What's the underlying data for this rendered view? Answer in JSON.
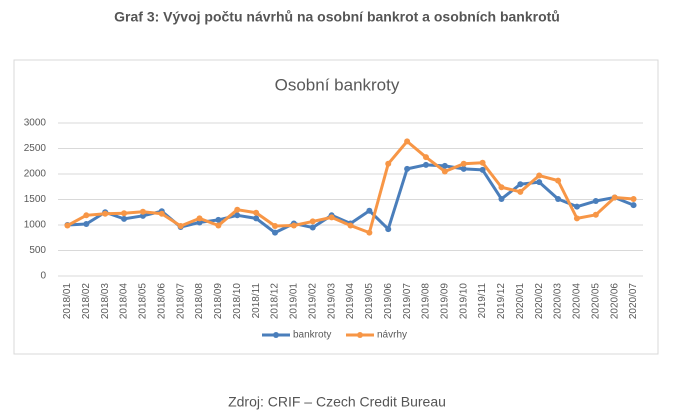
{
  "heading": "Graf 3: Vývoj počtu návrhů na osobní bankrot a osobních bankrotů",
  "source": "Zdroj: CRIF – Czech Credit Bureau",
  "chart_data": {
    "type": "line",
    "title": "Osobní bankroty",
    "categories": [
      "2018/01",
      "2018/02",
      "2018/03",
      "2018/04",
      "2018/05",
      "2018/06",
      "2018/07",
      "2018/08",
      "2018/09",
      "2018/10",
      "2018/11",
      "2018/12",
      "2019/01",
      "2019/02",
      "2019/03",
      "2019/04",
      "2019/05",
      "2019/06",
      "2019/07",
      "2019/08",
      "2019/09",
      "2019/10",
      "2019/11",
      "2019/12",
      "2020/01",
      "2020/02",
      "2020/03",
      "2020/04",
      "2020/05",
      "2020/06",
      "2020/07"
    ],
    "series": [
      {
        "name": "bankroty",
        "color": "#4a7ebb",
        "values": [
          1000,
          1020,
          1250,
          1120,
          1180,
          1270,
          960,
          1050,
          1100,
          1190,
          1130,
          850,
          1030,
          950,
          1190,
          1030,
          1280,
          920,
          2100,
          2180,
          2160,
          2100,
          2080,
          1510,
          1800,
          1840,
          1510,
          1360,
          1470,
          1540,
          1390
        ]
      },
      {
        "name": "návrhy",
        "color": "#f79646",
        "values": [
          990,
          1190,
          1220,
          1230,
          1260,
          1220,
          980,
          1130,
          990,
          1300,
          1240,
          980,
          990,
          1070,
          1150,
          990,
          850,
          2200,
          2640,
          2330,
          2050,
          2200,
          2220,
          1740,
          1650,
          1970,
          1870,
          1130,
          1200,
          1540,
          1510
        ]
      }
    ],
    "ylim": [
      0,
      3000
    ],
    "yticks": [
      0,
      500,
      1000,
      1500,
      2000,
      2500,
      3000
    ],
    "grid": true,
    "legend": "bottom"
  }
}
